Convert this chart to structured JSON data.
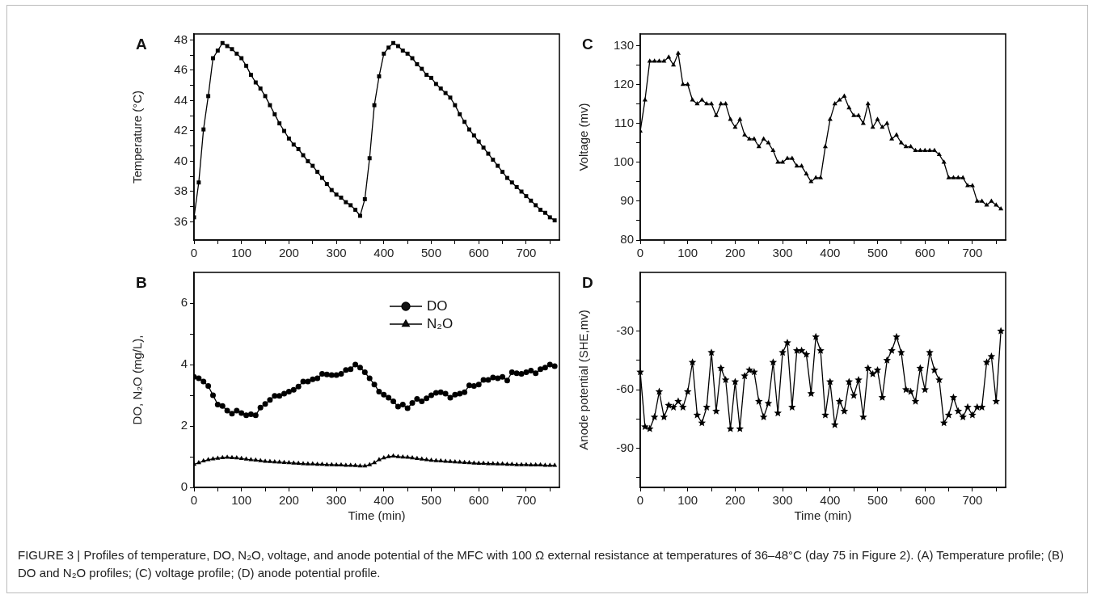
{
  "chart_data": [
    {
      "type": "line",
      "title": "A",
      "ylabel": "Temperature (°C)",
      "marker": "square",
      "line_style": "solid",
      "grid": false,
      "legend": false,
      "xlim": [
        0,
        770
      ],
      "xticks": [
        0,
        {
          "value": 50,
          "label": null
        },
        100,
        {
          "value": 150,
          "label": null
        },
        200,
        {
          "value": 250,
          "label": null
        },
        300,
        {
          "value": 350,
          "label": null
        },
        400,
        {
          "value": 450,
          "label": null
        },
        500,
        {
          "value": 550,
          "label": null
        },
        600,
        {
          "value": 650,
          "label": null
        },
        700,
        {
          "value": 750,
          "label": null
        }
      ],
      "ylim": [
        34.8,
        48.4
      ],
      "yticks": [
        36,
        {
          "value": 37,
          "label": null
        },
        38,
        {
          "value": 39,
          "label": null
        },
        40,
        {
          "value": 41,
          "label": null
        },
        42,
        {
          "value": 43,
          "label": null
        },
        44,
        {
          "value": 45,
          "label": null
        },
        46,
        {
          "value": 47,
          "label": null
        },
        48
      ],
      "x": [
        0,
        10,
        20,
        30,
        40,
        50,
        60,
        70,
        80,
        90,
        100,
        110,
        120,
        130,
        140,
        150,
        160,
        170,
        180,
        190,
        200,
        210,
        220,
        230,
        240,
        250,
        260,
        270,
        280,
        290,
        300,
        310,
        320,
        330,
        340,
        350,
        360,
        370,
        380,
        390,
        400,
        410,
        420,
        430,
        440,
        450,
        460,
        470,
        480,
        490,
        500,
        510,
        520,
        530,
        540,
        550,
        560,
        570,
        580,
        590,
        600,
        610,
        620,
        630,
        640,
        650,
        660,
        670,
        680,
        690,
        700,
        710,
        720,
        730,
        740,
        750,
        760
      ],
      "series": [
        {
          "color": "#000000",
          "values": [
            36.3,
            38.6,
            42.1,
            44.3,
            46.8,
            47.3,
            47.8,
            47.6,
            47.4,
            47.1,
            46.8,
            46.3,
            45.7,
            45.2,
            44.8,
            44.3,
            43.7,
            43.1,
            42.5,
            42.0,
            41.5,
            41.1,
            40.8,
            40.4,
            40.0,
            39.7,
            39.3,
            38.9,
            38.5,
            38.1,
            37.8,
            37.6,
            37.3,
            37.1,
            36.8,
            36.4,
            37.5,
            40.2,
            43.7,
            45.6,
            47.1,
            47.5,
            47.8,
            47.6,
            47.3,
            47.1,
            46.8,
            46.4,
            46.1,
            45.7,
            45.5,
            45.1,
            44.8,
            44.5,
            44.2,
            43.7,
            43.1,
            42.6,
            42.1,
            41.7,
            41.3,
            40.9,
            40.5,
            40.1,
            39.7,
            39.3,
            38.9,
            38.6,
            38.3,
            38.0,
            37.7,
            37.4,
            37.1,
            36.8,
            36.6,
            36.3,
            36.1
          ]
        }
      ]
    },
    {
      "type": "line",
      "title": "B",
      "xlabel": "Time (min)",
      "ylabel": "DO, N₂O (mg/L),",
      "line_style": "solid",
      "grid": false,
      "legend": "top right",
      "xlim": [
        0,
        770
      ],
      "xticks": [
        0,
        {
          "value": 50,
          "label": null
        },
        100,
        {
          "value": 150,
          "label": null
        },
        200,
        {
          "value": 250,
          "label": null
        },
        300,
        {
          "value": 350,
          "label": null
        },
        400,
        {
          "value": 450,
          "label": null
        },
        500,
        {
          "value": 550,
          "label": null
        },
        600,
        {
          "value": 650,
          "label": null
        },
        700,
        {
          "value": 750,
          "label": null
        }
      ],
      "ylim": [
        0,
        7
      ],
      "yticks": [
        0,
        {
          "value": 1,
          "label": null
        },
        2,
        {
          "value": 3,
          "label": null
        },
        4,
        {
          "value": 5,
          "label": null
        },
        6
      ],
      "x": [
        0,
        10,
        20,
        30,
        40,
        50,
        60,
        70,
        80,
        90,
        100,
        110,
        120,
        130,
        140,
        150,
        160,
        170,
        180,
        190,
        200,
        210,
        220,
        230,
        240,
        250,
        260,
        270,
        280,
        290,
        300,
        310,
        320,
        330,
        340,
        350,
        360,
        370,
        380,
        390,
        400,
        410,
        420,
        430,
        440,
        450,
        460,
        470,
        480,
        490,
        500,
        510,
        520,
        530,
        540,
        550,
        560,
        570,
        580,
        590,
        600,
        610,
        620,
        630,
        640,
        650,
        660,
        670,
        680,
        690,
        700,
        710,
        720,
        730,
        740,
        750,
        760
      ],
      "series": [
        {
          "name": "DO",
          "color": "#000000",
          "marker": "circle",
          "values": [
            3.6,
            3.55,
            3.45,
            3.3,
            3.0,
            2.7,
            2.65,
            2.5,
            2.4,
            2.5,
            2.42,
            2.35,
            2.38,
            2.35,
            2.6,
            2.72,
            2.85,
            2.98,
            2.98,
            3.05,
            3.12,
            3.18,
            3.28,
            3.45,
            3.45,
            3.52,
            3.55,
            3.7,
            3.68,
            3.66,
            3.66,
            3.7,
            3.82,
            3.85,
            4.0,
            3.9,
            3.75,
            3.55,
            3.35,
            3.12,
            3.02,
            2.92,
            2.8,
            2.63,
            2.7,
            2.58,
            2.75,
            2.88,
            2.8,
            2.9,
            3.0,
            3.08,
            3.1,
            3.05,
            2.92,
            3.02,
            3.05,
            3.1,
            3.32,
            3.3,
            3.35,
            3.5,
            3.5,
            3.58,
            3.55,
            3.6,
            3.48,
            3.75,
            3.72,
            3.7,
            3.75,
            3.8,
            3.72,
            3.85,
            3.9,
            4.0,
            3.95
          ]
        },
        {
          "name": "N₂O",
          "color": "#000000",
          "marker": "triangle",
          "values": [
            0.75,
            0.8,
            0.86,
            0.9,
            0.93,
            0.95,
            0.97,
            0.98,
            0.97,
            0.96,
            0.94,
            0.92,
            0.9,
            0.89,
            0.87,
            0.85,
            0.84,
            0.83,
            0.82,
            0.81,
            0.8,
            0.79,
            0.78,
            0.77,
            0.76,
            0.76,
            0.75,
            0.75,
            0.74,
            0.74,
            0.73,
            0.73,
            0.72,
            0.72,
            0.71,
            0.7,
            0.7,
            0.74,
            0.8,
            0.9,
            0.96,
            1.0,
            1.02,
            1.0,
            0.99,
            0.98,
            0.96,
            0.94,
            0.92,
            0.9,
            0.88,
            0.87,
            0.86,
            0.85,
            0.84,
            0.83,
            0.82,
            0.81,
            0.8,
            0.79,
            0.78,
            0.78,
            0.77,
            0.77,
            0.76,
            0.76,
            0.75,
            0.75,
            0.74,
            0.74,
            0.74,
            0.73,
            0.73,
            0.73,
            0.72,
            0.72,
            0.72
          ]
        }
      ]
    },
    {
      "type": "line",
      "title": "C",
      "ylabel": "Voltage (mv)",
      "marker": "triangle",
      "line_style": "solid",
      "grid": false,
      "legend": false,
      "xlim": [
        0,
        770
      ],
      "xticks": [
        0,
        {
          "value": 50,
          "label": null
        },
        100,
        {
          "value": 150,
          "label": null
        },
        200,
        {
          "value": 250,
          "label": null
        },
        300,
        {
          "value": 350,
          "label": null
        },
        400,
        {
          "value": 450,
          "label": null
        },
        500,
        {
          "value": 550,
          "label": null
        },
        600,
        {
          "value": 650,
          "label": null
        },
        700,
        {
          "value": 750,
          "label": null
        }
      ],
      "ylim": [
        80,
        133
      ],
      "yticks": [
        80,
        {
          "value": 85,
          "label": null
        },
        90,
        {
          "value": 95,
          "label": null
        },
        100,
        {
          "value": 105,
          "label": null
        },
        110,
        {
          "value": 115,
          "label": null
        },
        120,
        {
          "value": 125,
          "label": null
        },
        130
      ],
      "x": [
        0,
        10,
        20,
        30,
        40,
        50,
        60,
        70,
        80,
        90,
        100,
        110,
        120,
        130,
        140,
        150,
        160,
        170,
        180,
        190,
        200,
        210,
        220,
        230,
        240,
        250,
        260,
        270,
        280,
        290,
        300,
        310,
        320,
        330,
        340,
        350,
        360,
        370,
        380,
        390,
        400,
        410,
        420,
        430,
        440,
        450,
        460,
        470,
        480,
        490,
        500,
        510,
        520,
        530,
        540,
        550,
        560,
        570,
        580,
        590,
        600,
        610,
        620,
        630,
        640,
        650,
        660,
        670,
        680,
        690,
        700,
        710,
        720,
        730,
        740,
        750,
        760
      ],
      "series": [
        {
          "color": "#000000",
          "values": [
            108,
            116,
            126,
            126,
            126,
            126,
            127,
            125,
            128,
            120,
            120,
            116,
            115,
            116,
            115,
            115,
            112,
            115,
            115,
            111,
            109,
            111,
            107,
            106,
            106,
            104,
            106,
            105,
            103,
            100,
            100,
            101,
            101,
            99,
            99,
            97,
            95,
            96,
            96,
            104,
            111,
            115,
            116,
            117,
            114,
            112,
            112,
            110,
            115,
            109,
            111,
            109,
            110,
            106,
            107,
            105,
            104,
            104,
            103,
            103,
            103,
            103,
            103,
            102,
            100,
            96,
            96,
            96,
            96,
            94,
            94,
            90,
            90,
            89,
            90,
            89,
            88
          ]
        }
      ]
    },
    {
      "type": "line",
      "title": "D",
      "xlabel": "Time (min)",
      "ylabel": "Anode potential (SHE,mv)",
      "marker": "star",
      "line_style": "solid",
      "grid": false,
      "legend": false,
      "xlim": [
        0,
        770
      ],
      "xticks": [
        0,
        {
          "value": 50,
          "label": null
        },
        100,
        {
          "value": 150,
          "label": null
        },
        200,
        {
          "value": 250,
          "label": null
        },
        300,
        {
          "value": 350,
          "label": null
        },
        400,
        {
          "value": 450,
          "label": null
        },
        500,
        {
          "value": 550,
          "label": null
        },
        600,
        {
          "value": 650,
          "label": null
        },
        700,
        {
          "value": 750,
          "label": null
        }
      ],
      "ylim": [
        -110,
        0
      ],
      "yticks": [
        {
          "value": -105,
          "label": null
        },
        -90,
        {
          "value": -75,
          "label": null
        },
        -60,
        {
          "value": -45,
          "label": null
        },
        -30,
        {
          "value": -15,
          "label": null
        }
      ],
      "x": [
        0,
        10,
        20,
        30,
        40,
        50,
        60,
        70,
        80,
        90,
        100,
        110,
        120,
        130,
        140,
        150,
        160,
        170,
        180,
        190,
        200,
        210,
        220,
        230,
        240,
        250,
        260,
        270,
        280,
        290,
        300,
        310,
        320,
        330,
        340,
        350,
        360,
        370,
        380,
        390,
        400,
        410,
        420,
        430,
        440,
        450,
        460,
        470,
        480,
        490,
        500,
        510,
        520,
        530,
        540,
        550,
        560,
        570,
        580,
        590,
        600,
        610,
        620,
        630,
        640,
        650,
        660,
        670,
        680,
        690,
        700,
        710,
        720,
        730,
        740,
        750,
        760
      ],
      "series": [
        {
          "color": "#000000",
          "values": [
            -51,
            -79,
            -80,
            -74,
            -61,
            -74,
            -68,
            -69,
            -66,
            -69,
            -61,
            -46,
            -73,
            -77,
            -69,
            -41,
            -71,
            -49,
            -55,
            -80,
            -56,
            -80,
            -53,
            -50,
            -51,
            -66,
            -74,
            -67,
            -46,
            -72,
            -41,
            -36,
            -69,
            -40,
            -40,
            -42,
            -62,
            -33,
            -40,
            -73,
            -56,
            -78,
            -66,
            -71,
            -56,
            -63,
            -55,
            -74,
            -49,
            -52,
            -50,
            -64,
            -45,
            -40,
            -33,
            -41,
            -60,
            -61,
            -66,
            -49,
            -60,
            -41,
            -50,
            -55,
            -77,
            -73,
            -64,
            -71,
            -74,
            -69,
            -73,
            -69,
            -69,
            -46,
            -43,
            -66,
            -30
          ]
        }
      ],
      "annotations": [
        "FIGURE 3 | Profiles of temperature, DO, N₂O, voltage, and anode potential of the MFC with 100 Ω external resistance at temperatures of 36–48°C (day 75 in Figure 2). (A) Temperature profile; (B) DO and N₂O profiles; (C) voltage profile; (D) anode potential profile."
      ]
    }
  ]
}
